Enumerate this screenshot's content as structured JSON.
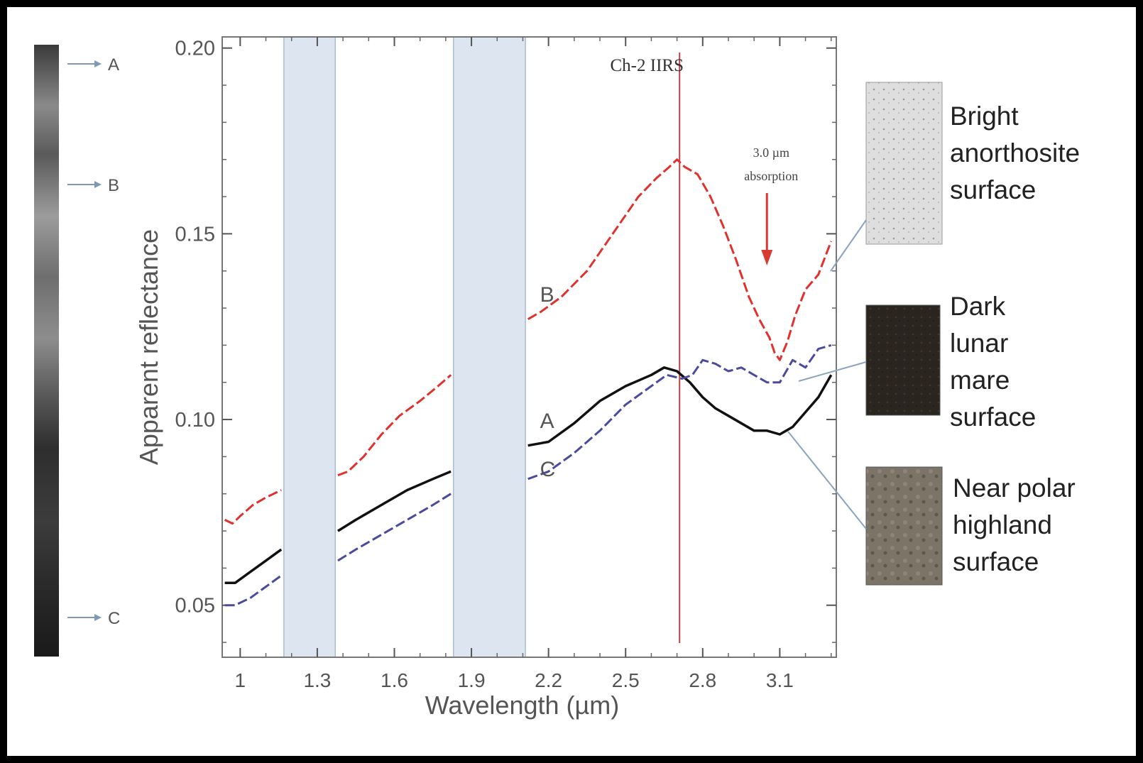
{
  "chart_data": {
    "type": "line",
    "title": "Ch-2 IIRS",
    "xlabel": "Wavelength (µm)",
    "ylabel": "Apparent reflectance",
    "xlim": [
      0.93,
      3.32
    ],
    "ylim": [
      0.036,
      0.203
    ],
    "xticks": [
      1,
      1.3,
      1.6,
      1.9,
      2.2,
      2.5,
      2.8,
      3.1
    ],
    "xtick_labels": [
      "1",
      "1.3",
      "1.6",
      "1.9",
      "2.2",
      "2.5",
      "2.8",
      "3.1"
    ],
    "yticks": [
      0.05,
      0.1,
      0.15,
      0.2
    ],
    "ytick_labels": [
      "0.05",
      "0.10",
      "0.15",
      "0.20"
    ],
    "grid": false,
    "shaded_bands": [
      [
        1.17,
        1.37
      ],
      [
        1.83,
        2.11
      ]
    ],
    "vertical_line_x": 2.71,
    "annotation": {
      "text_line1": "3.0 µm",
      "text_line2": "absorption",
      "arrow_x": 3.05
    },
    "series": [
      {
        "name": "B",
        "color": "#e0312f",
        "dashed": true,
        "segments": [
          [
            [
              0.94,
              0.073
            ],
            [
              0.97,
              0.072
            ],
            [
              1.0,
              0.074
            ],
            [
              1.05,
              0.077
            ],
            [
              1.1,
              0.079
            ],
            [
              1.16,
              0.081
            ]
          ],
          [
            [
              1.38,
              0.085
            ],
            [
              1.42,
              0.086
            ],
            [
              1.48,
              0.09
            ],
            [
              1.55,
              0.096
            ],
            [
              1.62,
              0.101
            ],
            [
              1.7,
              0.105
            ],
            [
              1.77,
              0.109
            ],
            [
              1.82,
              0.112
            ]
          ],
          [
            [
              2.12,
              0.127
            ],
            [
              2.17,
              0.129
            ],
            [
              2.25,
              0.133
            ],
            [
              2.35,
              0.14
            ],
            [
              2.45,
              0.15
            ],
            [
              2.55,
              0.16
            ],
            [
              2.62,
              0.165
            ],
            [
              2.67,
              0.168
            ],
            [
              2.7,
              0.17
            ],
            [
              2.73,
              0.168
            ],
            [
              2.78,
              0.166
            ],
            [
              2.83,
              0.16
            ],
            [
              2.88,
              0.152
            ],
            [
              2.93,
              0.143
            ],
            [
              2.98,
              0.133
            ],
            [
              3.02,
              0.127
            ],
            [
              3.06,
              0.122
            ],
            [
              3.08,
              0.118
            ],
            [
              3.1,
              0.116
            ],
            [
              3.13,
              0.121
            ],
            [
              3.16,
              0.128
            ],
            [
              3.2,
              0.135
            ],
            [
              3.25,
              0.139
            ],
            [
              3.3,
              0.148
            ]
          ]
        ]
      },
      {
        "name": "A",
        "color": "#111111",
        "dashed": false,
        "segments": [
          [
            [
              0.94,
              0.056
            ],
            [
              0.98,
              0.056
            ],
            [
              1.04,
              0.059
            ],
            [
              1.1,
              0.062
            ],
            [
              1.16,
              0.065
            ]
          ],
          [
            [
              1.38,
              0.07
            ],
            [
              1.45,
              0.073
            ],
            [
              1.55,
              0.077
            ],
            [
              1.65,
              0.081
            ],
            [
              1.75,
              0.084
            ],
            [
              1.82,
              0.086
            ]
          ],
          [
            [
              2.12,
              0.093
            ],
            [
              2.2,
              0.094
            ],
            [
              2.3,
              0.099
            ],
            [
              2.4,
              0.105
            ],
            [
              2.5,
              0.109
            ],
            [
              2.6,
              0.112
            ],
            [
              2.65,
              0.114
            ],
            [
              2.7,
              0.113
            ],
            [
              2.75,
              0.11
            ],
            [
              2.8,
              0.106
            ],
            [
              2.85,
              0.103
            ],
            [
              2.9,
              0.101
            ],
            [
              2.95,
              0.099
            ],
            [
              3.0,
              0.097
            ],
            [
              3.05,
              0.097
            ],
            [
              3.1,
              0.096
            ],
            [
              3.15,
              0.098
            ],
            [
              3.2,
              0.102
            ],
            [
              3.25,
              0.106
            ],
            [
              3.3,
              0.112
            ]
          ]
        ]
      },
      {
        "name": "C",
        "color": "#4a4a9e",
        "dashed": true,
        "segments": [
          [
            [
              0.94,
              0.05
            ],
            [
              0.98,
              0.05
            ],
            [
              1.04,
              0.052
            ],
            [
              1.1,
              0.055
            ],
            [
              1.16,
              0.058
            ]
          ],
          [
            [
              1.38,
              0.062
            ],
            [
              1.45,
              0.065
            ],
            [
              1.55,
              0.069
            ],
            [
              1.65,
              0.073
            ],
            [
              1.75,
              0.077
            ],
            [
              1.82,
              0.08
            ]
          ],
          [
            [
              2.12,
              0.084
            ],
            [
              2.2,
              0.086
            ],
            [
              2.3,
              0.091
            ],
            [
              2.4,
              0.097
            ],
            [
              2.5,
              0.104
            ],
            [
              2.6,
              0.109
            ],
            [
              2.66,
              0.112
            ],
            [
              2.72,
              0.111
            ],
            [
              2.76,
              0.112
            ],
            [
              2.8,
              0.116
            ],
            [
              2.85,
              0.115
            ],
            [
              2.9,
              0.113
            ],
            [
              2.95,
              0.114
            ],
            [
              3.0,
              0.112
            ],
            [
              3.05,
              0.11
            ],
            [
              3.1,
              0.11
            ],
            [
              3.15,
              0.116
            ],
            [
              3.2,
              0.114
            ],
            [
              3.25,
              0.119
            ],
            [
              3.3,
              0.12
            ]
          ]
        ]
      }
    ],
    "series_labels": [
      {
        "text": "B",
        "x": 2.2,
        "y": 0.134
      },
      {
        "text": "A",
        "x": 2.2,
        "y": 0.1
      },
      {
        "text": "C",
        "x": 2.2,
        "y": 0.087
      }
    ]
  },
  "strip": {
    "markers": [
      {
        "label": "A"
      },
      {
        "label": "B"
      },
      {
        "label": "C"
      }
    ]
  },
  "legend_panels": [
    {
      "lines": [
        "Bright",
        "anorthosite",
        "surface"
      ],
      "swatch_color": "#d6d6d6"
    },
    {
      "lines": [
        "Dark",
        "lunar",
        "mare",
        "surface"
      ],
      "swatch_color": "#2b2520"
    },
    {
      "lines": [
        "Near polar",
        "highland",
        "surface"
      ],
      "swatch_color": "#7d7468"
    }
  ]
}
